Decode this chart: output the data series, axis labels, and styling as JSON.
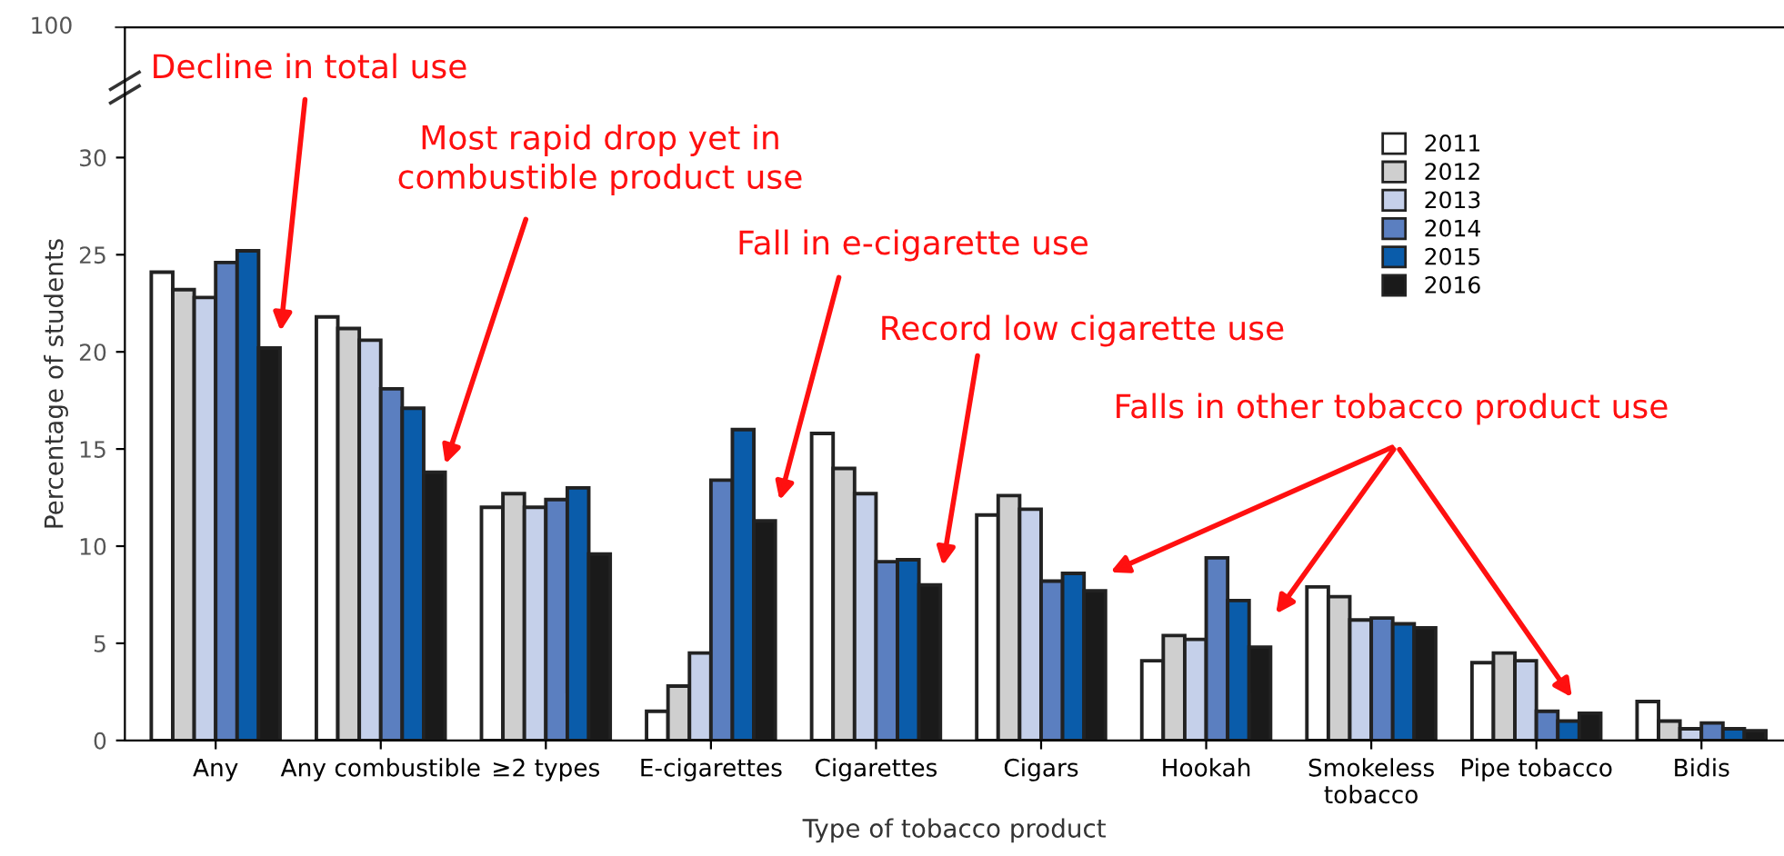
{
  "chart_data": {
    "type": "bar",
    "xlabel": "Type of tobacco product",
    "ylabel": "Percentage of students",
    "categories": [
      "Any",
      "Any combustible",
      "≥2 types",
      "E-cigarettes",
      "Cigarettes",
      "Cigars",
      "Hookah",
      "Smokeless\ntobacco",
      "Pipe tobacco",
      "Bidis"
    ],
    "series": [
      {
        "name": "2011",
        "color": "#ffffff",
        "values": [
          24.1,
          21.8,
          12.0,
          1.5,
          15.8,
          11.6,
          4.1,
          7.9,
          4.0,
          2.0
        ]
      },
      {
        "name": "2012",
        "color": "#cfcfcf",
        "values": [
          23.2,
          21.2,
          12.7,
          2.8,
          14.0,
          12.6,
          5.4,
          7.4,
          4.5,
          1.0
        ]
      },
      {
        "name": "2013",
        "color": "#c5d0ea",
        "values": [
          22.8,
          20.6,
          12.0,
          4.5,
          12.7,
          11.9,
          5.2,
          6.2,
          4.1,
          0.6
        ]
      },
      {
        "name": "2014",
        "color": "#5b7fc0",
        "values": [
          24.6,
          18.1,
          12.4,
          13.4,
          9.2,
          8.2,
          9.4,
          6.3,
          1.5,
          0.9
        ]
      },
      {
        "name": "2015",
        "color": "#0a5caa",
        "values": [
          25.2,
          17.1,
          13.0,
          16.0,
          9.3,
          8.6,
          7.2,
          6.0,
          1.0,
          0.6
        ]
      },
      {
        "name": "2016",
        "color": "#1a1a1a",
        "values": [
          20.2,
          13.8,
          9.6,
          11.3,
          8.0,
          7.7,
          4.8,
          5.8,
          1.4,
          0.5
        ]
      }
    ],
    "ylim": [
      0,
      36.7
    ],
    "yticks": [
      0,
      5,
      10,
      15,
      20,
      25,
      30
    ],
    "grid": false,
    "legend": "top right",
    "annotations": [
      "Decline in total use",
      "Most rapid drop yet in\ncombustible product use",
      "Fall in e-cigarette use",
      "Record low cigarette use",
      "Falls in other tobacco product use",
      "100"
    ]
  }
}
